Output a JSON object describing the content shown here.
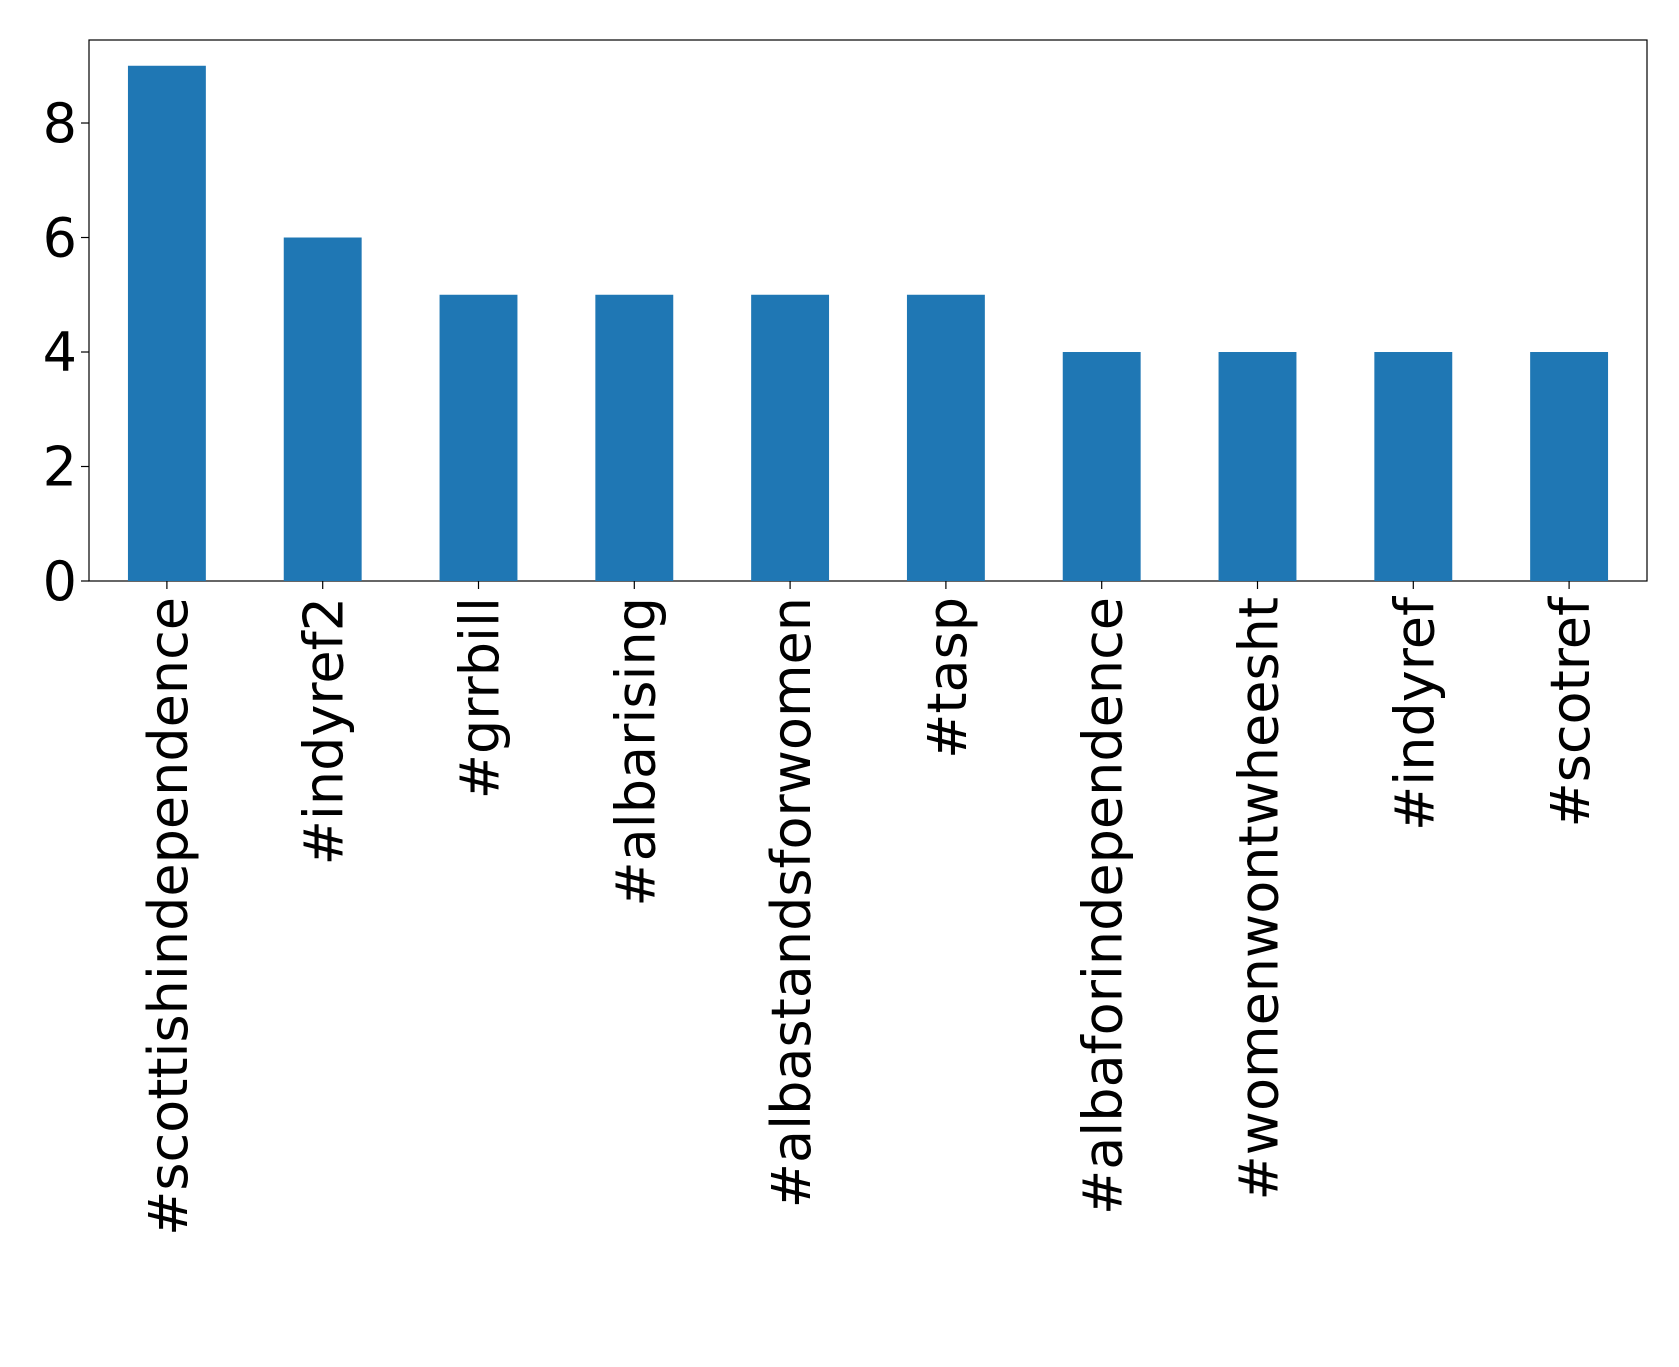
{
  "chart_data": {
    "type": "bar",
    "categories": [
      "#scottishindependence",
      "#indyref2",
      "#grrbill",
      "#albarising",
      "#albastandsforwomen",
      "#tasp",
      "#albaforindependence",
      "#womenwontwheesht",
      "#indyref",
      "#scotref"
    ],
    "values": [
      9,
      6,
      5,
      5,
      5,
      5,
      4,
      4,
      4,
      4
    ],
    "color": "#1f77b4",
    "ylim": [
      0,
      9.45
    ],
    "yticks": [
      0,
      2,
      4,
      6,
      8
    ],
    "grid": false
  }
}
